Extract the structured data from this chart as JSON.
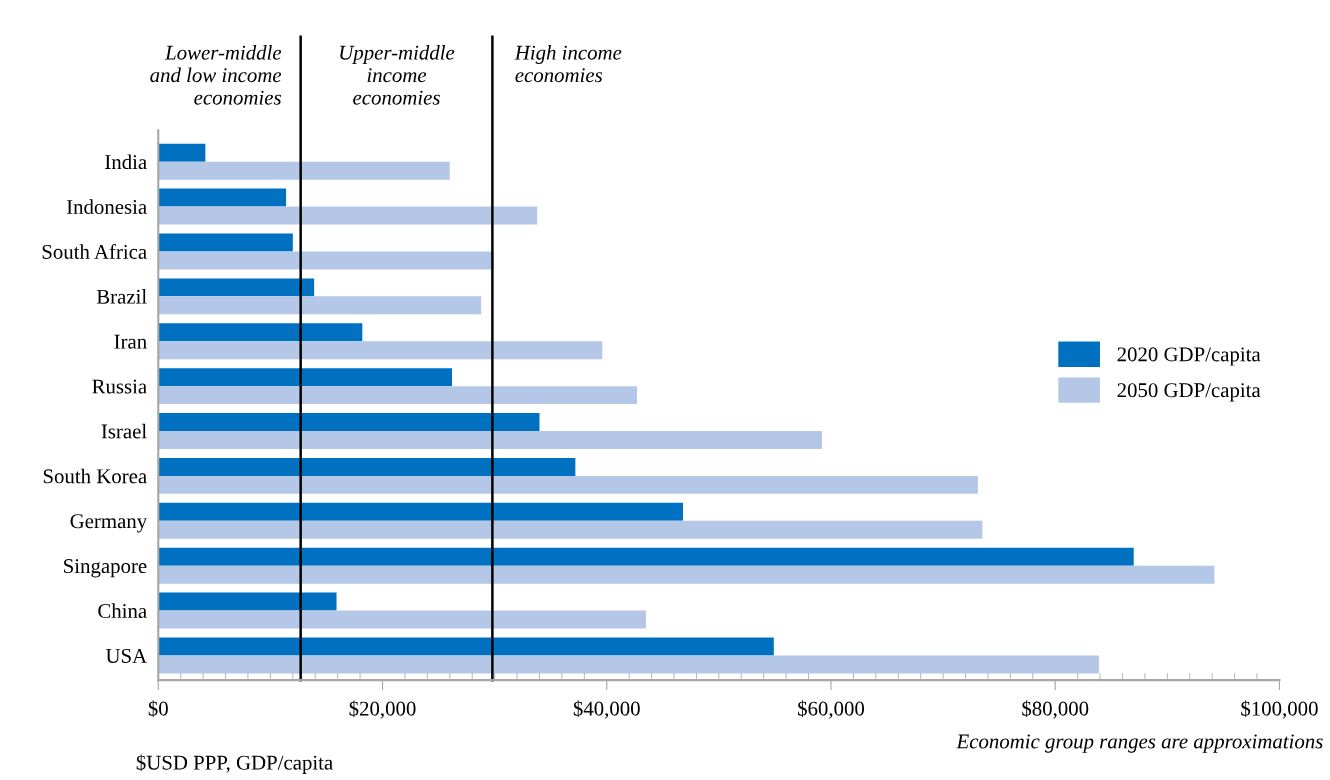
{
  "chart_data": {
    "type": "bar",
    "orientation": "horizontal",
    "categories": [
      "India",
      "Indonesia",
      "South Africa",
      "Brazil",
      "Iran",
      "Russia",
      "Israel",
      "South Korea",
      "Germany",
      "Singapore",
      "China",
      "USA"
    ],
    "series": [
      {
        "name": "2020 GDP/capita",
        "color": "#0070c0",
        "values": [
          4200,
          11400,
          12000,
          13900,
          18200,
          26200,
          34000,
          37200,
          46800,
          87000,
          15900,
          54900
        ]
      },
      {
        "name": "2050 GDP/capita",
        "color": "#b4c7e7",
        "values": [
          26000,
          33800,
          29900,
          28800,
          39600,
          42700,
          59200,
          73100,
          73500,
          94200,
          43500,
          83900
        ]
      }
    ],
    "xlim": [
      0,
      100000
    ],
    "xticks": [
      {
        "value": 0,
        "label": "$0"
      },
      {
        "value": 20000,
        "label": "$20,000"
      },
      {
        "value": 40000,
        "label": "$40,000"
      },
      {
        "value": 60000,
        "label": "$60,000"
      },
      {
        "value": 80000,
        "label": "$80,000"
      },
      {
        "value": 100000,
        "label": "$100,000"
      }
    ],
    "xlabel": "$USD PPP, GDP/capita",
    "ref_lines": [
      {
        "axis": "x",
        "value": 12700,
        "color": "#000000"
      },
      {
        "axis": "x",
        "value": 29800,
        "color": "#000000"
      }
    ],
    "annotations": [
      "Lower-middle\nand low income\neconomies",
      "Upper-middle\nincome\neconomies",
      "High income\neconomies",
      "Economic group ranges are approximations"
    ],
    "legend": "right",
    "grid": false
  }
}
